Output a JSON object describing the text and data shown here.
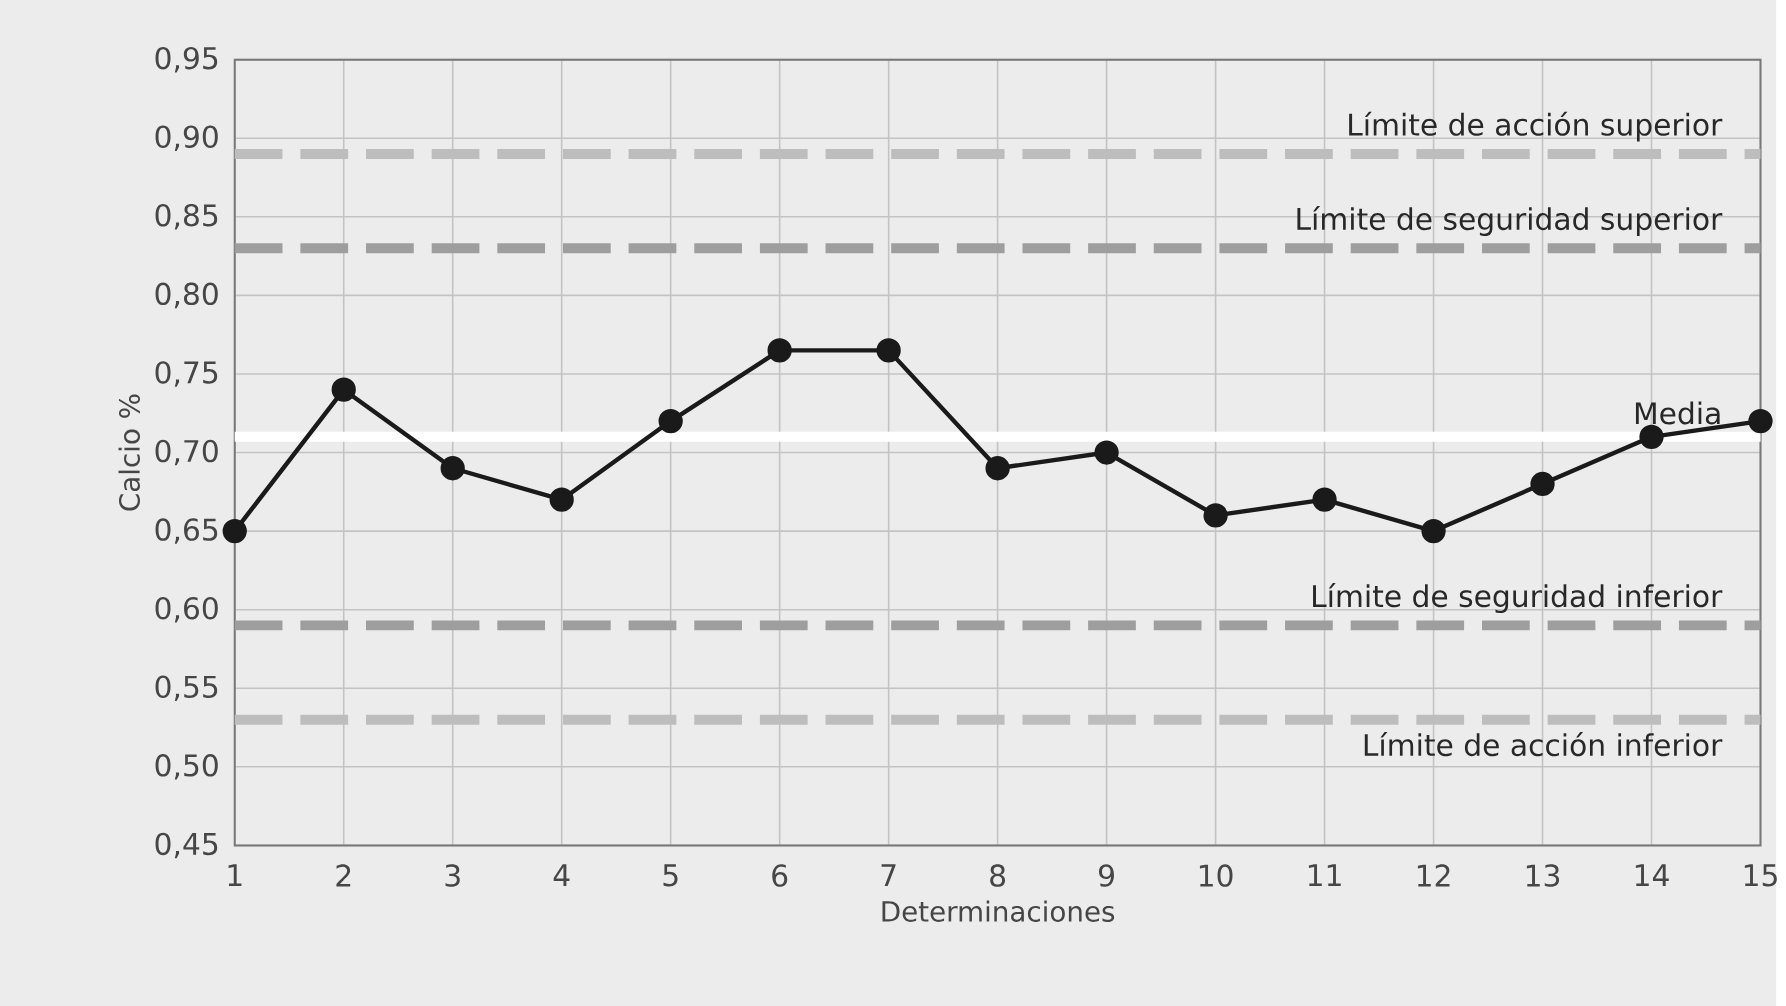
{
  "chart_data": {
    "type": "line",
    "xlabel": "Determinaciones",
    "ylabel": "Calcio %",
    "x": [
      1,
      2,
      3,
      4,
      5,
      6,
      7,
      8,
      9,
      10,
      11,
      12,
      13,
      14,
      15
    ],
    "series": [
      {
        "color": "#1a1a1a",
        "values": [
          0.65,
          0.74,
          0.69,
          0.67,
          0.72,
          0.765,
          0.765,
          0.69,
          0.7,
          0.66,
          0.67,
          0.65,
          0.68,
          0.71,
          0.72
        ]
      }
    ],
    "xlim": [
      1,
      15
    ],
    "xticks": [
      1,
      2,
      3,
      4,
      5,
      6,
      7,
      8,
      9,
      10,
      11,
      12,
      13,
      14,
      15
    ],
    "ylim": [
      0.45,
      0.95
    ],
    "yticks": [
      {
        "value": 0.45,
        "label": "0,45"
      },
      {
        "value": 0.5,
        "label": "0,50"
      },
      {
        "value": 0.55,
        "label": "0,55"
      },
      {
        "value": 0.6,
        "label": "0,60"
      },
      {
        "value": 0.65,
        "label": "0,65"
      },
      {
        "value": 0.7,
        "label": "0,70"
      },
      {
        "value": 0.75,
        "label": "0,75"
      },
      {
        "value": 0.8,
        "label": "0,80"
      },
      {
        "value": 0.85,
        "label": "0,85"
      },
      {
        "value": 0.9,
        "label": "0,90"
      },
      {
        "value": 0.95,
        "label": "0,95"
      }
    ],
    "ref_lines": [
      {
        "axis": "y",
        "value": 0.89,
        "label": "Límite de acción superior",
        "color": "#bdbdbd",
        "line_style": "dashed"
      },
      {
        "axis": "y",
        "value": 0.83,
        "label": "Límite de seguridad superior",
        "color": "#9e9e9e",
        "line_style": "dashed"
      },
      {
        "axis": "y",
        "value": 0.71,
        "label": "Media",
        "color": "#ffffff",
        "line_style": "solid"
      },
      {
        "axis": "y",
        "value": 0.59,
        "label": "Límite de seguridad inferior",
        "color": "#9e9e9e",
        "line_style": "dashed"
      },
      {
        "axis": "y",
        "value": 0.53,
        "label": "Límite de acción inferior",
        "color": "#bdbdbd",
        "line_style": "dashed"
      }
    ],
    "grid": true,
    "marker": "circle",
    "line_style": "solid"
  }
}
